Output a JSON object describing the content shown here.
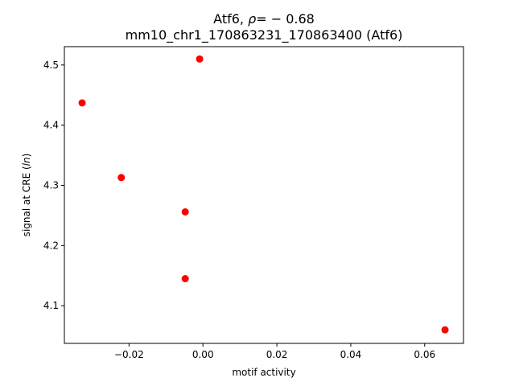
{
  "chart_data": {
    "type": "scatter",
    "title_line1_prefix": "Atf6, ",
    "title_rho": "ρ",
    "title_line1_suffix": "= − 0.68",
    "title_line2": "mm10_chr1_170863231_170863400 (Atf6)",
    "xlabel": "motif activity",
    "ylabel_prefix": "signal at CRE (",
    "ylabel_italic": "ln",
    "ylabel_suffix": ")",
    "xlim": [
      -0.0375,
      0.0705
    ],
    "ylim": [
      4.0375,
      4.5305
    ],
    "xticks": [
      {
        "value": -0.02,
        "label": "−0.02"
      },
      {
        "value": 0.0,
        "label": "0.00"
      },
      {
        "value": 0.02,
        "label": "0.02"
      },
      {
        "value": 0.04,
        "label": "0.04"
      },
      {
        "value": 0.06,
        "label": "0.06"
      }
    ],
    "yticks": [
      {
        "value": 4.1,
        "label": "4.1"
      },
      {
        "value": 4.2,
        "label": "4.2"
      },
      {
        "value": 4.3,
        "label": "4.3"
      },
      {
        "value": 4.4,
        "label": "4.4"
      },
      {
        "value": 4.5,
        "label": "4.5"
      }
    ],
    "grid": false,
    "point_color": "#ff0000",
    "points": [
      {
        "x": -0.0327,
        "y": 4.437
      },
      {
        "x": -0.0009,
        "y": 4.51
      },
      {
        "x": -0.0221,
        "y": 4.313
      },
      {
        "x": -0.0048,
        "y": 4.256
      },
      {
        "x": -0.0048,
        "y": 4.145
      },
      {
        "x": 0.0655,
        "y": 4.06
      }
    ]
  }
}
